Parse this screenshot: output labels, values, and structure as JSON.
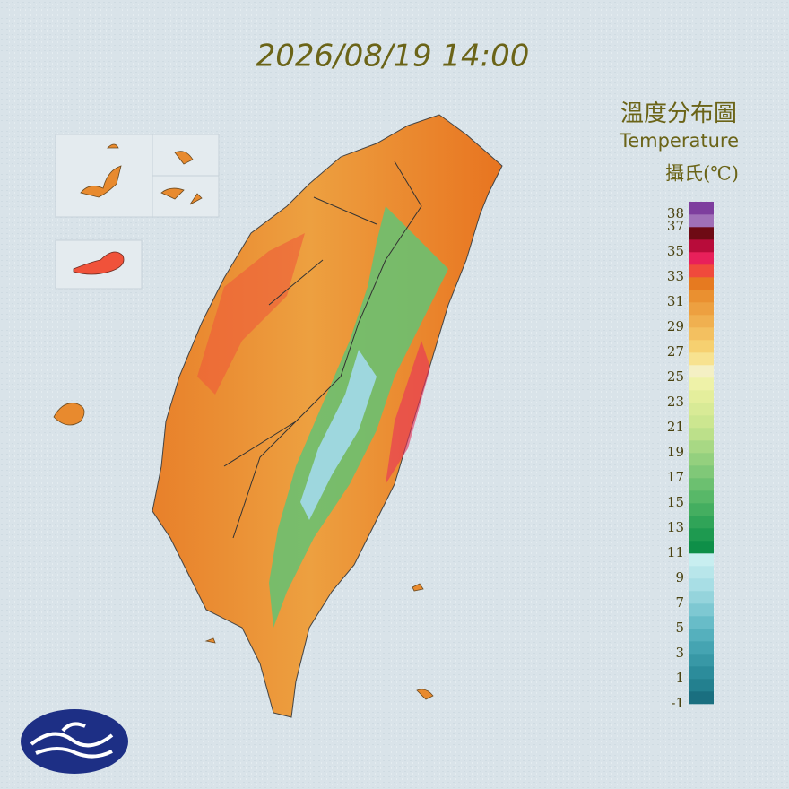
{
  "timestamp": "2026/08/19 14:00",
  "legend": {
    "title": "溫度分布圖",
    "subtitle": "Temperature",
    "unit": "攝氏(℃)",
    "ticks": [
      38,
      37,
      35,
      33,
      31,
      29,
      27,
      25,
      23,
      21,
      19,
      17,
      15,
      13,
      11,
      9,
      7,
      5,
      3,
      1,
      -1
    ],
    "colors": [
      "#1a6f80",
      "#23808f",
      "#2c8c9b",
      "#3898a6",
      "#45a4b2",
      "#55b0bd",
      "#68bcc8",
      "#7ec8d2",
      "#95d4dc",
      "#a8dee5",
      "#b8e6ea",
      "#c8eef0",
      "#0e8f48",
      "#1e9a50",
      "#30a458",
      "#44ae60",
      "#58b868",
      "#6cc070",
      "#80c878",
      "#94d07e",
      "#a8d884",
      "#bce08a",
      "#cce690",
      "#d8ea96",
      "#e4ee9c",
      "#eef2a8",
      "#f4f0c4",
      "#f7e290",
      "#f6d070",
      "#f3c060",
      "#f0b050",
      "#eda040",
      "#ea9030",
      "#e67a20",
      "#f04a3c",
      "#e8205a",
      "#b80c3a",
      "#6e0a14",
      "#a070b8",
      "#7e3e9e"
    ]
  }
}
